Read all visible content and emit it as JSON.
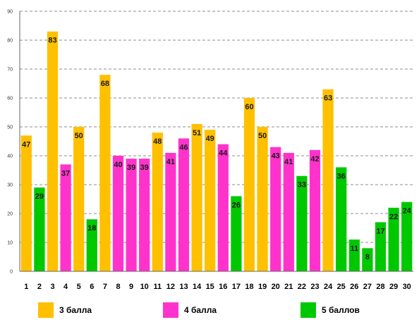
{
  "chart_data": {
    "type": "bar",
    "categories": [
      "1",
      "2",
      "3",
      "4",
      "5",
      "6",
      "7",
      "8",
      "9",
      "10",
      "11",
      "12",
      "13",
      "14",
      "15",
      "16",
      "17",
      "18",
      "19",
      "20",
      "21",
      "22",
      "23",
      "24",
      "25",
      "26",
      "27",
      "28",
      "29",
      "30"
    ],
    "values": [
      47,
      29,
      83,
      37,
      50,
      18,
      68,
      40,
      39,
      39,
      48,
      41,
      46,
      51,
      49,
      44,
      26,
      60,
      50,
      43,
      41,
      33,
      42,
      63,
      36,
      11,
      8,
      17,
      22,
      24
    ],
    "groups": [
      "s3",
      "s5",
      "s3",
      "s4",
      "s3",
      "s5",
      "s3",
      "s4",
      "s4",
      "s4",
      "s3",
      "s4",
      "s4",
      "s3",
      "s3",
      "s4",
      "s5",
      "s3",
      "s3",
      "s4",
      "s4",
      "s5",
      "s4",
      "s3",
      "s5",
      "s5",
      "s5",
      "s5",
      "s5",
      "s5"
    ],
    "series": [
      {
        "id": "s3",
        "name": "3 балла",
        "color": "#FFC000"
      },
      {
        "id": "s4",
        "name": "4 балла",
        "color": "#FF33CC"
      },
      {
        "id": "s5",
        "name": "5 баллов",
        "color": "#00C800"
      }
    ],
    "yticks": [
      "0",
      "10",
      "20",
      "30",
      "40",
      "50",
      "60",
      "70",
      "80",
      "90"
    ],
    "ylim": [
      0,
      90
    ],
    "grid": true,
    "legend_position": "bottom",
    "title": "",
    "xlabel": "",
    "ylabel": ""
  }
}
